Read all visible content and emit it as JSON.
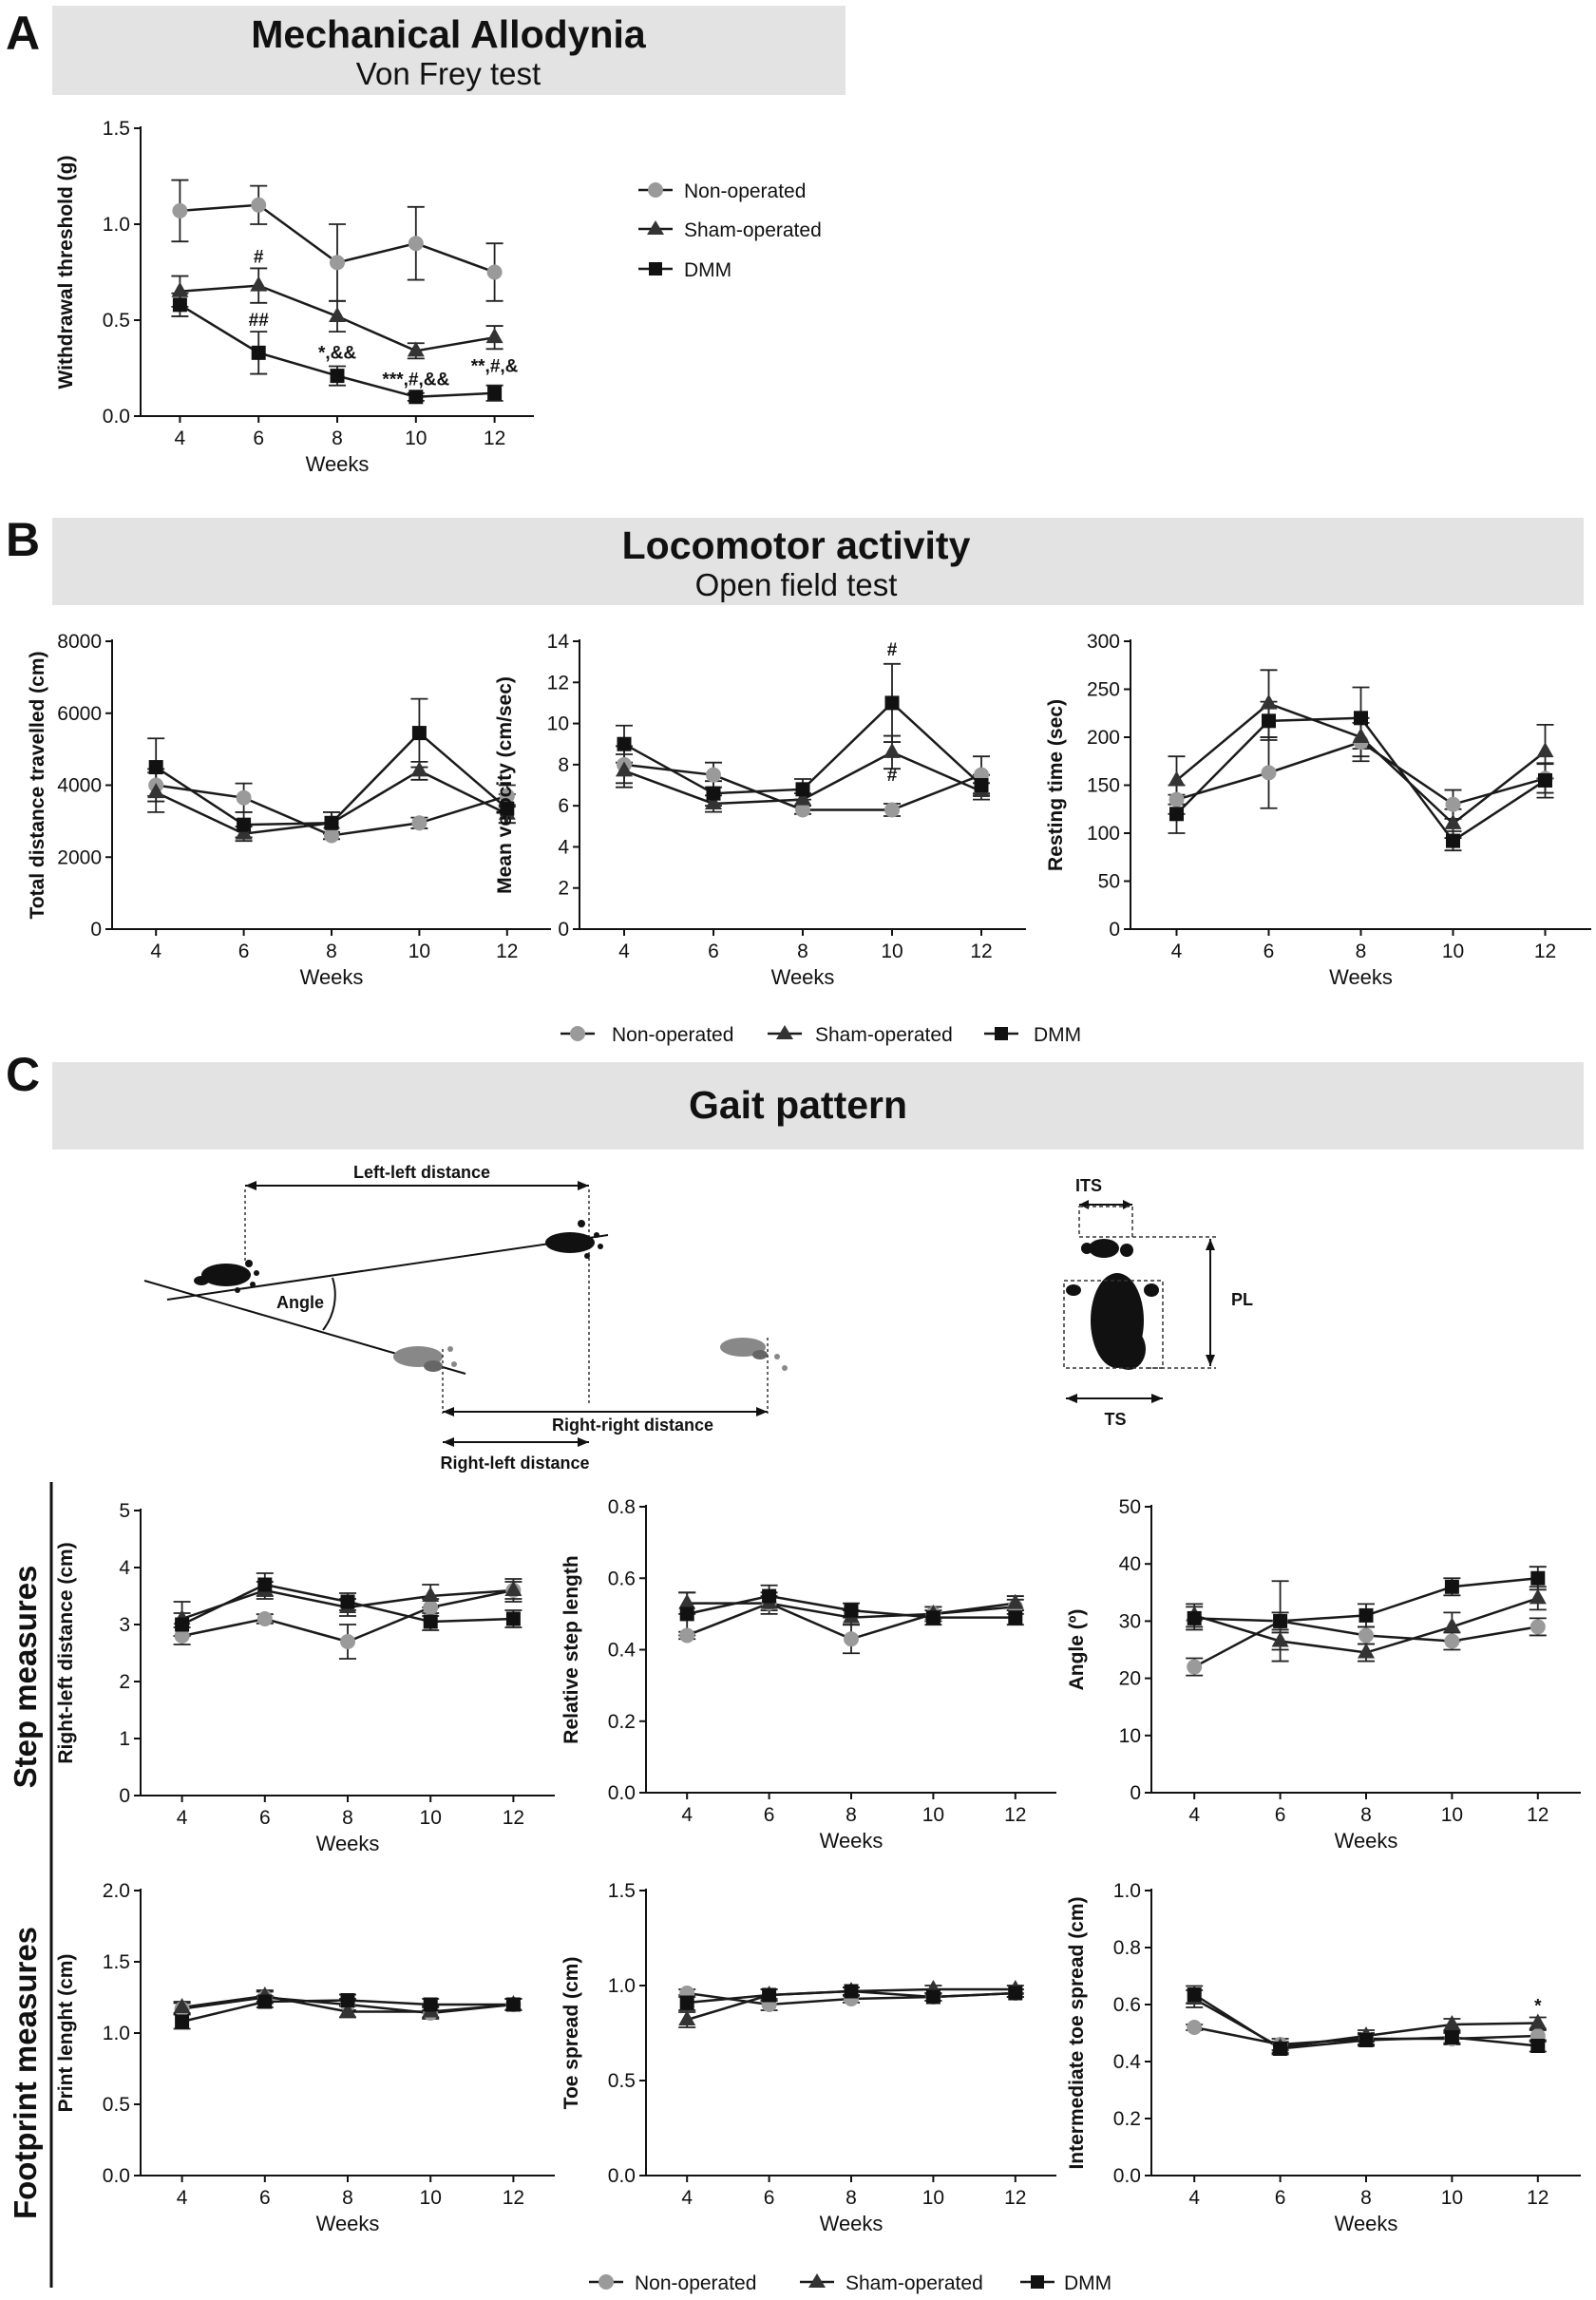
{
  "figure": {
    "panel_letters": [
      "A",
      "B",
      "C"
    ],
    "panelA": {
      "title": "Mechanical Allodynia",
      "subtitle": "Von Frey test"
    },
    "panelB": {
      "title": "Locomotor activity",
      "subtitle": "Open field test"
    },
    "panelC": {
      "title": "Gait pattern",
      "row_labels": [
        "Step measures",
        "Footprint measures"
      ]
    },
    "legend": [
      "Non-operated",
      "Sham-operated",
      "DMM"
    ],
    "diagram": {
      "labels": {
        "left_left": "Left-left distance",
        "angle": "Angle",
        "right_right": "Right-right distance",
        "right_left": "Right-left distance",
        "its": "ITS",
        "pl": "PL",
        "ts": "TS"
      }
    }
  },
  "styles": {
    "banner_color": "#e3e3e3",
    "line_color": "#1a1a1a",
    "non_operated_color": "#9a9a9a",
    "sham_color": "#333333",
    "dmm_color": "#111111"
  },
  "chart_data": [
    {
      "id": "vonfrey",
      "type": "line",
      "title": "Mechanical Allodynia",
      "subtitle": "Von Frey test",
      "xlabel": "Weeks",
      "ylabel": "Withdrawal threshold (g)",
      "x": [
        4,
        6,
        8,
        10,
        12
      ],
      "xlim": [
        3,
        13
      ],
      "ylim": [
        0,
        1.5
      ],
      "yticks": [
        0.0,
        0.5,
        1.0,
        1.5
      ],
      "ytick_labels": [
        "0.0",
        "0.5",
        "1.0",
        "1.5"
      ],
      "series": [
        {
          "name": "Non-operated",
          "values": [
            1.07,
            1.1,
            0.8,
            0.9,
            0.75
          ],
          "errors": [
            0.16,
            0.1,
            0.2,
            0.19,
            0.15
          ]
        },
        {
          "name": "Sham-operated",
          "values": [
            0.65,
            0.68,
            0.52,
            0.34,
            0.41
          ],
          "errors": [
            0.08,
            0.09,
            0.08,
            0.04,
            0.06
          ]
        },
        {
          "name": "DMM",
          "values": [
            0.58,
            0.33,
            0.21,
            0.1,
            0.12
          ],
          "errors": [
            0.06,
            0.11,
            0.05,
            0.02,
            0.04
          ]
        }
      ],
      "annotations": [
        {
          "text": "#",
          "x": 6,
          "y": 0.8
        },
        {
          "text": "##",
          "x": 6,
          "y": 0.47
        },
        {
          "text": "*,&&",
          "x": 8,
          "y": 0.3
        },
        {
          "text": "***,#,&&",
          "x": 10,
          "y": 0.16
        },
        {
          "text": "**,#,&",
          "x": 12,
          "y": 0.23
        }
      ]
    },
    {
      "id": "distance",
      "type": "line",
      "xlabel": "Weeks",
      "ylabel": "Total distance travelled (cm)",
      "x": [
        4,
        6,
        8,
        10,
        12
      ],
      "xlim": [
        3,
        13
      ],
      "ylim": [
        0,
        8000
      ],
      "yticks": [
        0,
        2000,
        4000,
        6000,
        8000
      ],
      "ytick_labels": [
        "0",
        "2000",
        "4000",
        "6000",
        "8000"
      ],
      "series": [
        {
          "name": "Non-operated",
          "values": [
            4000,
            3650,
            2600,
            2950,
            3700
          ],
          "errors": [
            450,
            400,
            100,
            150,
            300
          ]
        },
        {
          "name": "Sham-operated",
          "values": [
            3800,
            2650,
            2950,
            4400,
            3200
          ],
          "errors": [
            550,
            200,
            300,
            250,
            250
          ]
        },
        {
          "name": "DMM",
          "values": [
            4500,
            2900,
            2950,
            5450,
            3350
          ],
          "errors": [
            800,
            350,
            300,
            950,
            400
          ]
        }
      ]
    },
    {
      "id": "velocity",
      "type": "line",
      "xlabel": "Weeks",
      "ylabel": "Mean velocity (cm/sec)",
      "x": [
        4,
        6,
        8,
        10,
        12
      ],
      "xlim": [
        3,
        13
      ],
      "ylim": [
        0,
        14
      ],
      "yticks": [
        0,
        2,
        4,
        6,
        8,
        10,
        12,
        14
      ],
      "ytick_labels": [
        "0",
        "2",
        "4",
        "6",
        "8",
        "10",
        "12",
        "14"
      ],
      "series": [
        {
          "name": "Non-operated",
          "values": [
            8.0,
            7.5,
            5.8,
            5.8,
            7.5
          ],
          "errors": [
            0.9,
            0.6,
            0.2,
            0.3,
            0.9
          ]
        },
        {
          "name": "Sham-operated",
          "values": [
            7.7,
            6.1,
            6.3,
            8.6,
            6.7
          ],
          "errors": [
            0.8,
            0.4,
            0.3,
            0.8,
            0.4
          ]
        },
        {
          "name": "DMM",
          "values": [
            9.0,
            6.6,
            6.8,
            11.0,
            7.0
          ],
          "errors": [
            0.9,
            0.6,
            0.5,
            1.9,
            0.5
          ]
        }
      ],
      "annotations": [
        {
          "text": "#",
          "x": 10,
          "y": 13.3
        },
        {
          "text": "#",
          "x": 10,
          "y": 7.2
        }
      ]
    },
    {
      "id": "resting",
      "type": "line",
      "xlabel": "Weeks",
      "ylabel": "Resting time (sec)",
      "x": [
        4,
        6,
        8,
        10,
        12
      ],
      "xlim": [
        3,
        13
      ],
      "ylim": [
        0,
        300
      ],
      "yticks": [
        0,
        50,
        100,
        150,
        200,
        250,
        300
      ],
      "ytick_labels": [
        "0",
        "50",
        "100",
        "150",
        "200",
        "250",
        "300"
      ],
      "series": [
        {
          "name": "Non-operated",
          "values": [
            135,
            163,
            195,
            130,
            157
          ],
          "errors": [
            15,
            37,
            20,
            15,
            15
          ]
        },
        {
          "name": "Sham-operated",
          "values": [
            155,
            235,
            200,
            110,
            185
          ],
          "errors": [
            25,
            35,
            20,
            15,
            28
          ]
        },
        {
          "name": "DMM",
          "values": [
            120,
            217,
            220,
            92,
            155
          ],
          "errors": [
            20,
            20,
            32,
            10,
            18
          ]
        }
      ]
    },
    {
      "id": "rl_distance",
      "type": "line",
      "xlabel": "Weeks",
      "ylabel": "Right-left distance (cm)",
      "x": [
        4,
        6,
        8,
        10,
        12
      ],
      "xlim": [
        3,
        13
      ],
      "ylim": [
        0,
        5
      ],
      "yticks": [
        0,
        1,
        2,
        3,
        4,
        5
      ],
      "ytick_labels": [
        "0",
        "1",
        "2",
        "3",
        "4",
        "5"
      ],
      "series": [
        {
          "name": "Non-operated",
          "values": [
            2.8,
            3.1,
            2.7,
            3.3,
            3.6
          ],
          "errors": [
            0.15,
            0.08,
            0.3,
            0.15,
            0.15
          ]
        },
        {
          "name": "Sham-operated",
          "values": [
            3.1,
            3.6,
            3.3,
            3.5,
            3.6
          ],
          "errors": [
            0.3,
            0.15,
            0.15,
            0.2,
            0.2
          ]
        },
        {
          "name": "DMM",
          "values": [
            3.0,
            3.7,
            3.4,
            3.05,
            3.1
          ],
          "errors": [
            0.2,
            0.2,
            0.15,
            0.15,
            0.15
          ]
        }
      ]
    },
    {
      "id": "rel_step",
      "type": "line",
      "xlabel": "Weeks",
      "ylabel": "Relative step length",
      "x": [
        4,
        6,
        8,
        10,
        12
      ],
      "xlim": [
        3,
        13
      ],
      "ylim": [
        0,
        0.8
      ],
      "yticks": [
        0.0,
        0.2,
        0.4,
        0.6,
        0.8
      ],
      "ytick_labels": [
        "0.0",
        "0.2",
        "0.4",
        "0.6",
        "0.8"
      ],
      "series": [
        {
          "name": "Non-operated",
          "values": [
            0.44,
            0.53,
            0.43,
            0.5,
            0.52
          ],
          "errors": [
            0.01,
            0.03,
            0.04,
            0.02,
            0.02
          ]
        },
        {
          "name": "Sham-operated",
          "values": [
            0.53,
            0.53,
            0.49,
            0.5,
            0.53
          ],
          "errors": [
            0.03,
            0.02,
            0.02,
            0.02,
            0.02
          ]
        },
        {
          "name": "DMM",
          "values": [
            0.5,
            0.55,
            0.51,
            0.49,
            0.49
          ],
          "errors": [
            0.06,
            0.03,
            0.02,
            0.02,
            0.02
          ]
        }
      ]
    },
    {
      "id": "angle",
      "type": "line",
      "xlabel": "Weeks",
      "ylabel": "Angle (º)",
      "x": [
        4,
        6,
        8,
        10,
        12
      ],
      "xlim": [
        3,
        13
      ],
      "ylim": [
        0,
        50
      ],
      "yticks": [
        0,
        10,
        20,
        30,
        40,
        50
      ],
      "ytick_labels": [
        "0",
        "10",
        "20",
        "30",
        "40",
        "50"
      ],
      "series": [
        {
          "name": "Non-operated",
          "values": [
            22,
            30,
            27.5,
            26.5,
            29
          ],
          "errors": [
            1.5,
            7,
            1.5,
            1.5,
            1.5
          ]
        },
        {
          "name": "Sham-operated",
          "values": [
            31,
            26.5,
            24.5,
            29,
            34
          ],
          "errors": [
            2,
            1.5,
            1.5,
            2.5,
            2
          ]
        },
        {
          "name": "DMM",
          "values": [
            30.5,
            30,
            31,
            36,
            37.5
          ],
          "errors": [
            2,
            1.5,
            2,
            1.5,
            2
          ]
        }
      ]
    },
    {
      "id": "print_len",
      "type": "line",
      "xlabel": "Weeks",
      "ylabel": "Print lenght (cm)",
      "x": [
        4,
        6,
        8,
        10,
        12
      ],
      "xlim": [
        3,
        13
      ],
      "ylim": [
        0,
        2.0
      ],
      "yticks": [
        0.0,
        0.5,
        1.0,
        1.5,
        2.0
      ],
      "ytick_labels": [
        "0.0",
        "0.5",
        "1.0",
        "1.5",
        "2.0"
      ],
      "series": [
        {
          "name": "Non-operated",
          "values": [
            1.17,
            1.25,
            1.2,
            1.14,
            1.2
          ],
          "errors": [
            0.04,
            0.04,
            0.04,
            0.04,
            0.04
          ]
        },
        {
          "name": "Sham-operated",
          "values": [
            1.18,
            1.26,
            1.15,
            1.15,
            1.2
          ],
          "errors": [
            0.04,
            0.04,
            0.04,
            0.04,
            0.04
          ]
        },
        {
          "name": "DMM",
          "values": [
            1.08,
            1.22,
            1.23,
            1.2,
            1.2
          ],
          "errors": [
            0.05,
            0.04,
            0.04,
            0.04,
            0.04
          ]
        }
      ]
    },
    {
      "id": "toe_spread",
      "type": "line",
      "xlabel": "Weeks",
      "ylabel": "Toe spread (cm)",
      "x": [
        4,
        6,
        8,
        10,
        12
      ],
      "xlim": [
        3,
        13
      ],
      "ylim": [
        0,
        1.5
      ],
      "yticks": [
        0.0,
        0.5,
        1.0,
        1.5
      ],
      "ytick_labels": [
        "0.0",
        "0.5",
        "1.0",
        "1.5"
      ],
      "series": [
        {
          "name": "Non-operated",
          "values": [
            0.96,
            0.9,
            0.93,
            0.94,
            0.96
          ],
          "errors": [
            0.02,
            0.03,
            0.02,
            0.02,
            0.02
          ]
        },
        {
          "name": "Sham-operated",
          "values": [
            0.82,
            0.95,
            0.97,
            0.98,
            0.98
          ],
          "errors": [
            0.04,
            0.03,
            0.02,
            0.02,
            0.02
          ]
        },
        {
          "name": "DMM",
          "values": [
            0.91,
            0.95,
            0.97,
            0.94,
            0.96
          ],
          "errors": [
            0.04,
            0.03,
            0.02,
            0.02,
            0.02
          ]
        }
      ]
    },
    {
      "id": "its",
      "type": "line",
      "xlabel": "Weeks",
      "ylabel": "Intermediate toe spread (cm)",
      "x": [
        4,
        6,
        8,
        10,
        12
      ],
      "xlim": [
        3,
        13
      ],
      "ylim": [
        0,
        1.0
      ],
      "yticks": [
        0.0,
        0.2,
        0.4,
        0.6,
        0.8,
        1.0
      ],
      "ytick_labels": [
        "0.0",
        "0.2",
        "0.4",
        "0.6",
        "0.8",
        "1.0"
      ],
      "series": [
        {
          "name": "Non-operated",
          "values": [
            0.52,
            0.46,
            0.48,
            0.48,
            0.49
          ],
          "errors": [
            0.01,
            0.02,
            0.02,
            0.02,
            0.02
          ]
        },
        {
          "name": "Sham-operated",
          "values": [
            0.62,
            0.45,
            0.49,
            0.53,
            0.535
          ],
          "errors": [
            0.03,
            0.02,
            0.02,
            0.02,
            0.02
          ]
        },
        {
          "name": "DMM",
          "values": [
            0.635,
            0.445,
            0.475,
            0.485,
            0.455
          ],
          "errors": [
            0.03,
            0.02,
            0.02,
            0.02,
            0.02
          ]
        }
      ],
      "annotations": [
        {
          "text": "*",
          "x": 12,
          "y": 0.575
        }
      ]
    }
  ]
}
